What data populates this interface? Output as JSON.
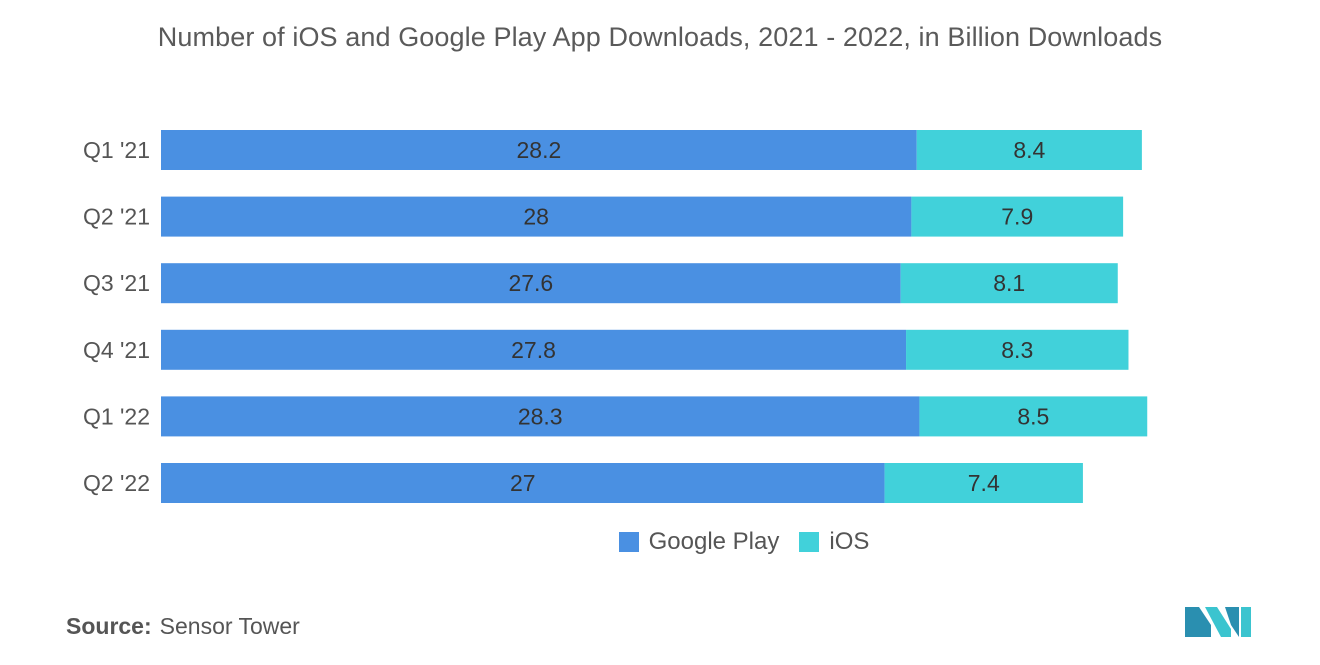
{
  "title": "Number of iOS and Google Play App Downloads, 2021 - 2022, in Billion Downloads",
  "source": {
    "label": "Source:",
    "value": "Sensor Tower"
  },
  "colors": {
    "google_play": "#4a90e2",
    "ios": "#41d1da"
  },
  "legend": [
    "Google Play",
    "iOS"
  ],
  "chart_data": {
    "type": "bar",
    "orientation": "horizontal",
    "stacked": true,
    "title": "Number of iOS and Google Play App Downloads, 2021 - 2022, in Billion Downloads",
    "categories": [
      "Q1 '21",
      "Q2 '21",
      "Q3 '21",
      "Q4 '21",
      "Q1 '22",
      "Q2 '22"
    ],
    "series": [
      {
        "name": "Google Play",
        "values": [
          28.2,
          28,
          27.6,
          27.8,
          28.3,
          27
        ],
        "color": "#4a90e2"
      },
      {
        "name": "iOS",
        "values": [
          8.4,
          7.9,
          8.1,
          8.3,
          8.5,
          7.4
        ],
        "color": "#41d1da"
      }
    ],
    "grid": false,
    "legend_position": "bottom"
  }
}
